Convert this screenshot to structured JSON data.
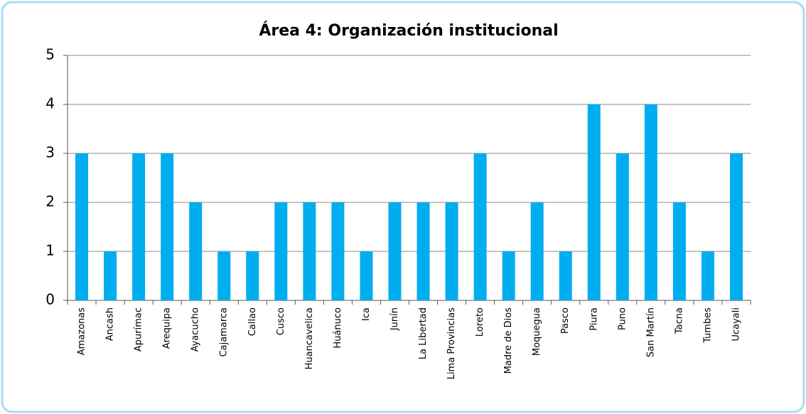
{
  "chart_data": {
    "type": "bar",
    "title": "Área 4: Organización institucional",
    "categories": [
      "Amazonas",
      "Ancash",
      "Apurímac",
      "Arequipa",
      "Ayacucho",
      "Cajamarca",
      "Callao",
      "Cusco",
      "Huancavelica",
      "Huánuco",
      "Ica",
      "Junín",
      "La Libertad",
      "Lima Provincias",
      "Loreto",
      "Madre de Dios",
      "Moquegua",
      "Pasco",
      "Piura",
      "Puno",
      "San Martín",
      "Tacna",
      "Tumbes",
      "Ucayali"
    ],
    "values": [
      3,
      1,
      3,
      3,
      2,
      1,
      1,
      2,
      2,
      2,
      1,
      2,
      2,
      2,
      3,
      1,
      2,
      1,
      4,
      3,
      4,
      2,
      1,
      3
    ],
    "color": "#00aeef",
    "ylim": [
      0,
      5
    ],
    "yticks": [
      0,
      1,
      2,
      3,
      4,
      5
    ],
    "grid": true
  }
}
